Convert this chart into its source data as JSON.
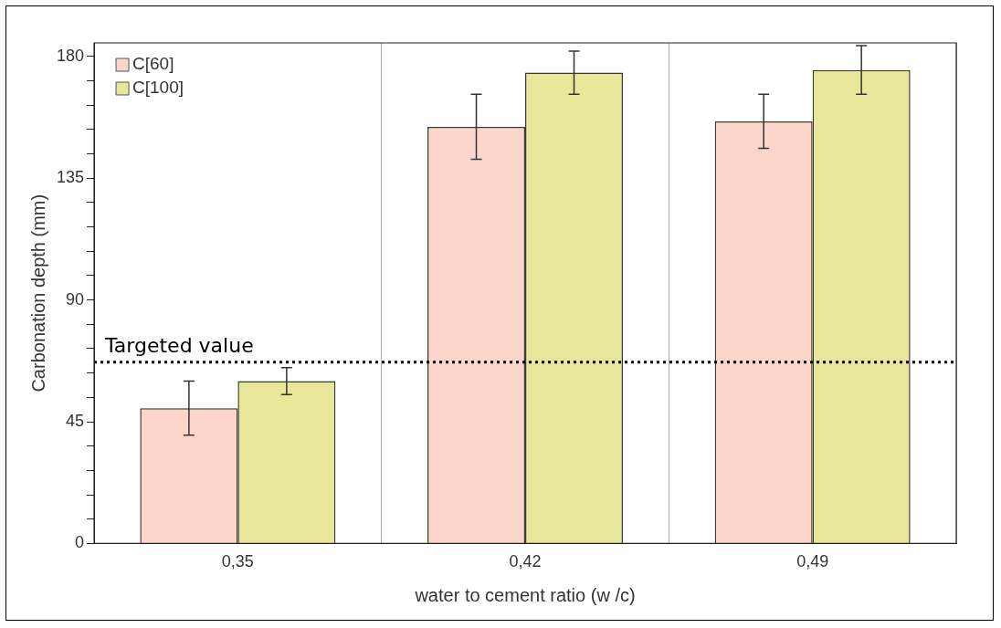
{
  "chart_data": {
    "type": "bar",
    "xlabel": "water to cement ratio (w /c)",
    "ylabel": "Carbonation depth (mm)",
    "categories": [
      "0,35",
      "0,42",
      "0,49"
    ],
    "series": [
      {
        "name": "C[60]",
        "color": "#fcd6cb",
        "values": [
          50,
          154,
          156
        ],
        "errors": [
          10,
          12,
          10
        ]
      },
      {
        "name": "C[100]",
        "color": "#e8e699",
        "values": [
          60,
          174,
          175
        ],
        "errors": [
          5,
          8,
          9
        ]
      }
    ],
    "ylim": [
      0,
      185
    ],
    "yticks": [
      0,
      {
        "value": 9,
        "label": null
      },
      {
        "value": 18,
        "label": null
      },
      {
        "value": 27,
        "label": null
      },
      {
        "value": 36,
        "label": null
      },
      45,
      {
        "value": 54,
        "label": null
      },
      {
        "value": 63,
        "label": null
      },
      {
        "value": 72,
        "label": null
      },
      {
        "value": 81,
        "label": null
      },
      90,
      {
        "value": 99,
        "label": null
      },
      {
        "value": 108,
        "label": null
      },
      {
        "value": 117,
        "label": null
      },
      {
        "value": 126,
        "label": null
      },
      135,
      {
        "value": 144,
        "label": null
      },
      {
        "value": 153,
        "label": null
      },
      {
        "value": 162,
        "label": null
      },
      {
        "value": 171,
        "label": null
      },
      180
    ],
    "ref_lines": [
      {
        "axis": "y",
        "value": 67,
        "label": "Targeted value",
        "line_style": "dotted",
        "color": "#000000"
      }
    ],
    "grid": "x",
    "legend": "top left"
  }
}
